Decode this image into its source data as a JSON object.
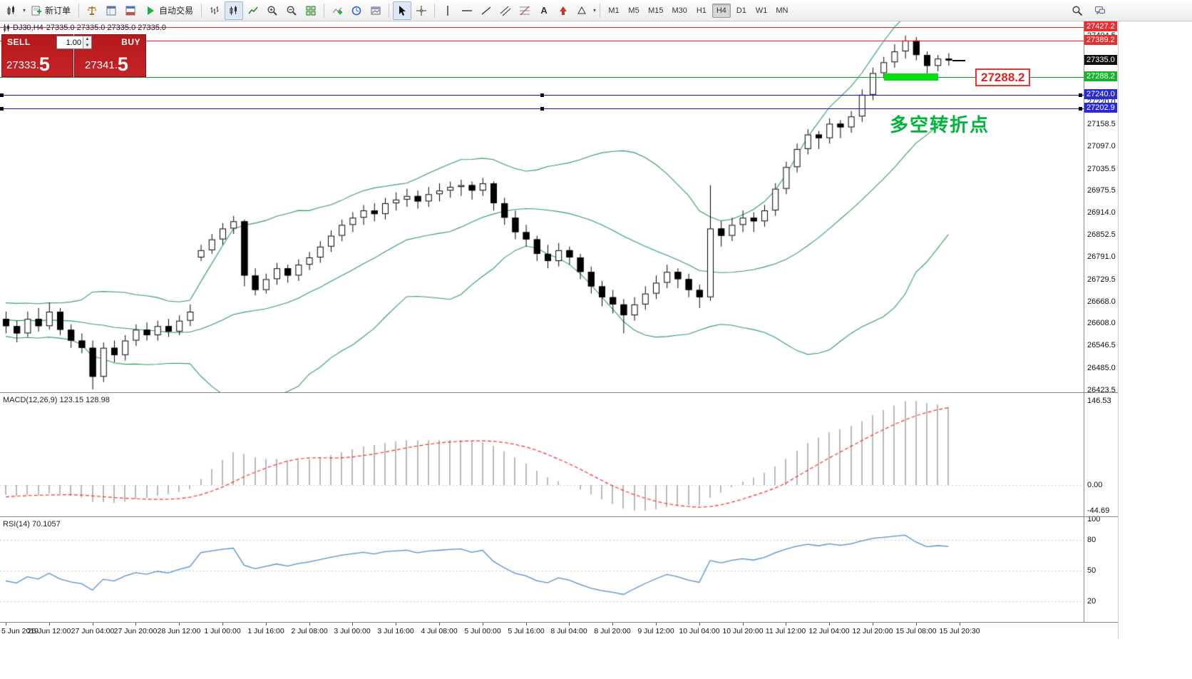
{
  "toolbar": {
    "new_order": "新订单",
    "autotrading": "自动交易",
    "text_tool": "A",
    "timeframes": [
      "M1",
      "M5",
      "M15",
      "M30",
      "H1",
      "H4",
      "D1",
      "W1",
      "MN"
    ],
    "active_timeframe": "H4"
  },
  "one_click": {
    "sell_label": "SELL",
    "buy_label": "BUY",
    "volume": "1.00",
    "sell_price_main": "27333.",
    "sell_price_big": "5",
    "buy_price_main": "27341.",
    "buy_price_big": "5"
  },
  "chart": {
    "title": "DJ30,H4",
    "ohlc": "27335.0 27335.0 27335.0 27335.0",
    "callout_label": "27288.2",
    "annotation_text": "多空转折点"
  },
  "price_axis": {
    "ticks": [
      {
        "label": "27404.5",
        "price": 27404.5
      },
      {
        "label": "27220.0",
        "price": 27220.0
      },
      {
        "label": "27158.5",
        "price": 27158.5
      },
      {
        "label": "27097.0",
        "price": 27097.0
      },
      {
        "label": "27035.5",
        "price": 27035.5
      },
      {
        "label": "26975.5",
        "price": 26975.5
      },
      {
        "label": "26914.0",
        "price": 26914.0
      },
      {
        "label": "26852.5",
        "price": 26852.5
      },
      {
        "label": "26791.0",
        "price": 26791.0
      },
      {
        "label": "26729.5",
        "price": 26729.5
      },
      {
        "label": "26668.0",
        "price": 26668.0
      },
      {
        "label": "26608.0",
        "price": 26608.0
      },
      {
        "label": "26546.5",
        "price": 26546.5
      },
      {
        "label": "26485.0",
        "price": 26485.0
      },
      {
        "label": "26423.5",
        "price": 26423.5
      }
    ],
    "specials": [
      {
        "label": "27427.2",
        "price": 27427.2,
        "bg": "#e53030"
      },
      {
        "label": "27389.2",
        "price": 27389.2,
        "bg": "#e53030"
      },
      {
        "label": "27335.0",
        "price": 27335.0,
        "bg": "#111111"
      },
      {
        "label": "27288.2",
        "price": 27288.2,
        "bg": "#18b52c"
      },
      {
        "label": "27240.0",
        "price": 27240.0,
        "bg": "#2929d6"
      },
      {
        "label": "27202.9",
        "price": 27202.9,
        "bg": "#2929d6"
      }
    ]
  },
  "lines": [
    {
      "name": "resistance-line-1",
      "price": 27427.2,
      "color": "#ff2222",
      "height": 1,
      "handles": false
    },
    {
      "name": "resistance-line-2",
      "price": 27389.2,
      "color": "#ff2222",
      "height": 1,
      "handles": false
    },
    {
      "name": "support-line-green",
      "price": 27288.2,
      "color": "#00a42a",
      "height": 1,
      "handles": false
    },
    {
      "name": "hline-blue-1",
      "price": 27240.0,
      "color": "#1414cc",
      "height": 1,
      "handles": true
    },
    {
      "name": "hline-blue-2",
      "price": 27202.9,
      "color": "#1414cc",
      "height": 1,
      "handles": true
    }
  ],
  "highlight": {
    "x": 1240,
    "width": 76,
    "height": 10,
    "price": 27288.2,
    "color": "#00dd11"
  },
  "macd_panel": {
    "label": "MACD(12,26,9)",
    "values": "123.15 128.98",
    "axis": [
      {
        "label": "146.53",
        "v": 146.53
      },
      {
        "label": "0.00",
        "v": 0
      },
      {
        "label": "-44.69",
        "v": -44.69
      }
    ]
  },
  "rsi_panel": {
    "label": "RSI(14)",
    "value": "70.1057",
    "axis": [
      {
        "label": "100",
        "v": 100
      },
      {
        "label": "80",
        "v": 80
      },
      {
        "label": "50",
        "v": 50
      },
      {
        "label": "20",
        "v": 20
      }
    ]
  },
  "chart_data": {
    "type": "candlestick",
    "symbol": "DJ30",
    "period": "H4",
    "ylim": [
      26417,
      27443
    ],
    "bollinger_period": 20,
    "time_labels": [
      "5 Jun 2019",
      "26 Jun 12:00",
      "27 Jun 04:00",
      "27 Jun 20:00",
      "28 Jun 12:00",
      "1 Jul 00:00",
      "1 Jul 16:00",
      "2 Jul 08:00",
      "3 Jul 00:00",
      "3 Jul 16:00",
      "4 Jul 08:00",
      "5 Jul 00:00",
      "5 Jul 16:00",
      "8 Jul 04:00",
      "8 Jul 20:00",
      "9 Jul 12:00",
      "10 Jul 04:00",
      "10 Jul 20:00",
      "11 Jul 12:00",
      "12 Jul 04:00",
      "12 Jul 20:00",
      "15 Jul 08:00",
      "15 Jul 20:30"
    ],
    "warmup_closes": [
      26750,
      26720,
      26740,
      26700,
      26660,
      26680,
      26640,
      26600,
      26630,
      26590,
      26620,
      26580,
      26610,
      26570,
      26600,
      26640,
      26610,
      26650,
      26620,
      26640,
      26660,
      26630,
      26610,
      26640,
      26620
    ],
    "candles": [
      [
        26620,
        26640,
        26580,
        26600
      ],
      [
        26600,
        26615,
        26555,
        26580
      ],
      [
        26580,
        26640,
        26570,
        26620
      ],
      [
        26620,
        26650,
        26585,
        26600
      ],
      [
        26600,
        26665,
        26590,
        26640
      ],
      [
        26640,
        26650,
        26575,
        26590
      ],
      [
        26590,
        26605,
        26540,
        26560
      ],
      [
        26560,
        26580,
        26525,
        26540
      ],
      [
        26540,
        26560,
        26425,
        26460
      ],
      [
        26460,
        26555,
        26445,
        26540
      ],
      [
        26540,
        26560,
        26500,
        26520
      ],
      [
        26520,
        26575,
        26505,
        26560
      ],
      [
        26560,
        26605,
        26545,
        26590
      ],
      [
        26590,
        26610,
        26560,
        26575
      ],
      [
        26575,
        26615,
        26560,
        26600
      ],
      [
        26600,
        26620,
        26570,
        26585
      ],
      [
        26585,
        26630,
        26575,
        26615
      ],
      [
        26615,
        26660,
        26600,
        26640
      ],
      [
        26790,
        26825,
        26780,
        26810
      ],
      [
        26810,
        26855,
        26800,
        26840
      ],
      [
        26840,
        26885,
        26825,
        26870
      ],
      [
        26870,
        26905,
        26855,
        26890
      ],
      [
        26890,
        26895,
        26710,
        26740
      ],
      [
        26740,
        26760,
        26685,
        26700
      ],
      [
        26700,
        26745,
        26690,
        26730
      ],
      [
        26730,
        26775,
        26715,
        26760
      ],
      [
        26760,
        26770,
        26720,
        26740
      ],
      [
        26740,
        26785,
        26725,
        26770
      ],
      [
        26770,
        26805,
        26755,
        26790
      ],
      [
        26790,
        26835,
        26775,
        26820
      ],
      [
        26820,
        26865,
        26805,
        26850
      ],
      [
        26850,
        26895,
        26835,
        26880
      ],
      [
        26880,
        26915,
        26860,
        26900
      ],
      [
        26900,
        26935,
        26880,
        26920
      ],
      [
        26920,
        26940,
        26890,
        26910
      ],
      [
        26910,
        26955,
        26895,
        26940
      ],
      [
        26940,
        26970,
        26920,
        26950
      ],
      [
        26950,
        26980,
        26930,
        26960
      ],
      [
        26960,
        26975,
        26925,
        26945
      ],
      [
        26945,
        26985,
        26930,
        26965
      ],
      [
        26965,
        26995,
        26945,
        26975
      ],
      [
        26975,
        27000,
        26955,
        26985
      ],
      [
        26985,
        27005,
        26960,
        26990
      ],
      [
        26990,
        27000,
        26950,
        26975
      ],
      [
        26975,
        27010,
        26960,
        26995
      ],
      [
        26995,
        27000,
        26920,
        26940
      ],
      [
        26940,
        26955,
        26880,
        26900
      ],
      [
        26900,
        26920,
        26840,
        26860
      ],
      [
        26860,
        26880,
        26820,
        26840
      ],
      [
        26840,
        26850,
        26780,
        26800
      ],
      [
        26800,
        26825,
        26760,
        26780
      ],
      [
        26780,
        26830,
        26765,
        26810
      ],
      [
        26810,
        26820,
        26770,
        26790
      ],
      [
        26790,
        26800,
        26730,
        26750
      ],
      [
        26750,
        26765,
        26690,
        26710
      ],
      [
        26710,
        26725,
        26655,
        26680
      ],
      [
        26680,
        26700,
        26635,
        26660
      ],
      [
        26660,
        26675,
        26580,
        26630
      ],
      [
        26630,
        26680,
        26615,
        26660
      ],
      [
        26660,
        26710,
        26645,
        26690
      ],
      [
        26690,
        26740,
        26675,
        26720
      ],
      [
        26720,
        26770,
        26705,
        26750
      ],
      [
        26750,
        26760,
        26705,
        26730
      ],
      [
        26730,
        26745,
        26680,
        26700
      ],
      [
        26700,
        26715,
        26650,
        26680
      ],
      [
        26680,
        26990,
        26670,
        26870
      ],
      [
        26870,
        26890,
        26820,
        26850
      ],
      [
        26850,
        26900,
        26835,
        26880
      ],
      [
        26880,
        26920,
        26860,
        26900
      ],
      [
        26900,
        26915,
        26860,
        26890
      ],
      [
        26890,
        26935,
        26875,
        26920
      ],
      [
        26920,
        26995,
        26905,
        26980
      ],
      [
        26980,
        27055,
        26965,
        27040
      ],
      [
        27040,
        27105,
        27025,
        27090
      ],
      [
        27090,
        27145,
        27075,
        27130
      ],
      [
        27130,
        27140,
        27090,
        27120
      ],
      [
        27120,
        27175,
        27105,
        27160
      ],
      [
        27160,
        27170,
        27120,
        27150
      ],
      [
        27150,
        27195,
        27135,
        27180
      ],
      [
        27180,
        27255,
        27165,
        27240
      ],
      [
        27240,
        27315,
        27225,
        27300
      ],
      [
        27300,
        27345,
        27285,
        27330
      ],
      [
        27330,
        27380,
        27315,
        27360
      ],
      [
        27360,
        27404,
        27340,
        27390
      ],
      [
        27390,
        27400,
        27335,
        27350
      ],
      [
        27350,
        27360,
        27295,
        27320
      ],
      [
        27320,
        27350,
        27305,
        27340
      ],
      [
        27340,
        27355,
        27320,
        27335
      ]
    ]
  }
}
